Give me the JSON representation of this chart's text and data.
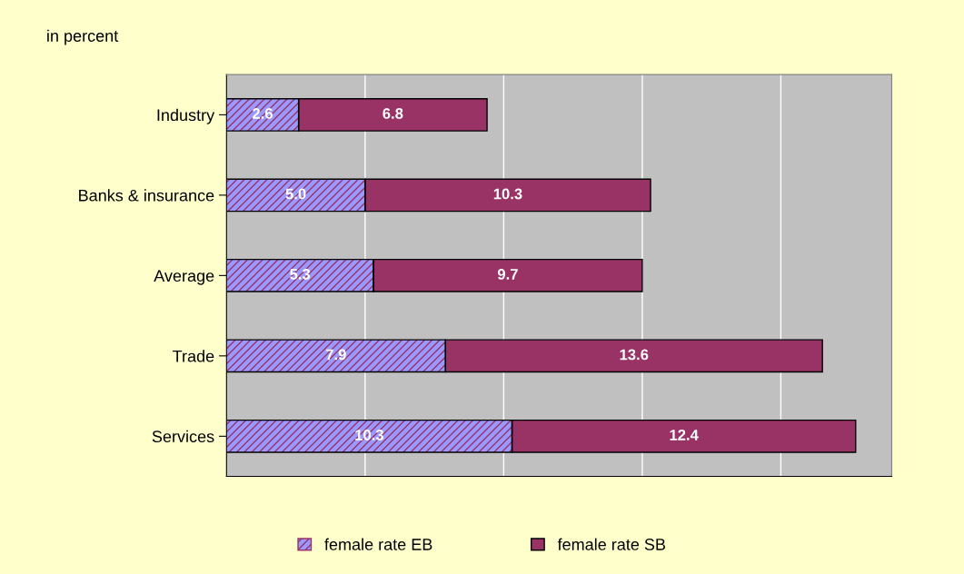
{
  "chart_data": {
    "type": "bar",
    "orientation": "horizontal",
    "stacked": true,
    "categories": [
      "Industry",
      "Banks & insurance",
      "Average",
      "Trade",
      "Services"
    ],
    "series": [
      {
        "name": "female rate EB",
        "color": "#9999ff",
        "values": [
          2.6,
          5.0,
          5.3,
          7.9,
          10.3
        ],
        "value_labels": [
          "2.6",
          "5.0",
          "5.3",
          "7.9",
          "10.3"
        ]
      },
      {
        "name": "female rate SB",
        "color": "#993366",
        "values": [
          6.8,
          10.3,
          9.7,
          13.6,
          12.4
        ],
        "value_labels": [
          "6.8",
          "10.3",
          "9.7",
          "13.6",
          "12.4"
        ]
      }
    ],
    "xlim": [
      0,
      24
    ],
    "xticks": [
      {
        "value": 0,
        "label": null
      },
      {
        "value": 5,
        "label": null
      },
      {
        "value": 10,
        "label": null
      },
      {
        "value": 15,
        "label": null
      },
      {
        "value": 20,
        "label": null
      }
    ],
    "tick_labels": "y",
    "grid": "x",
    "legend": "bottom",
    "annotations": [
      "in percent"
    ]
  }
}
